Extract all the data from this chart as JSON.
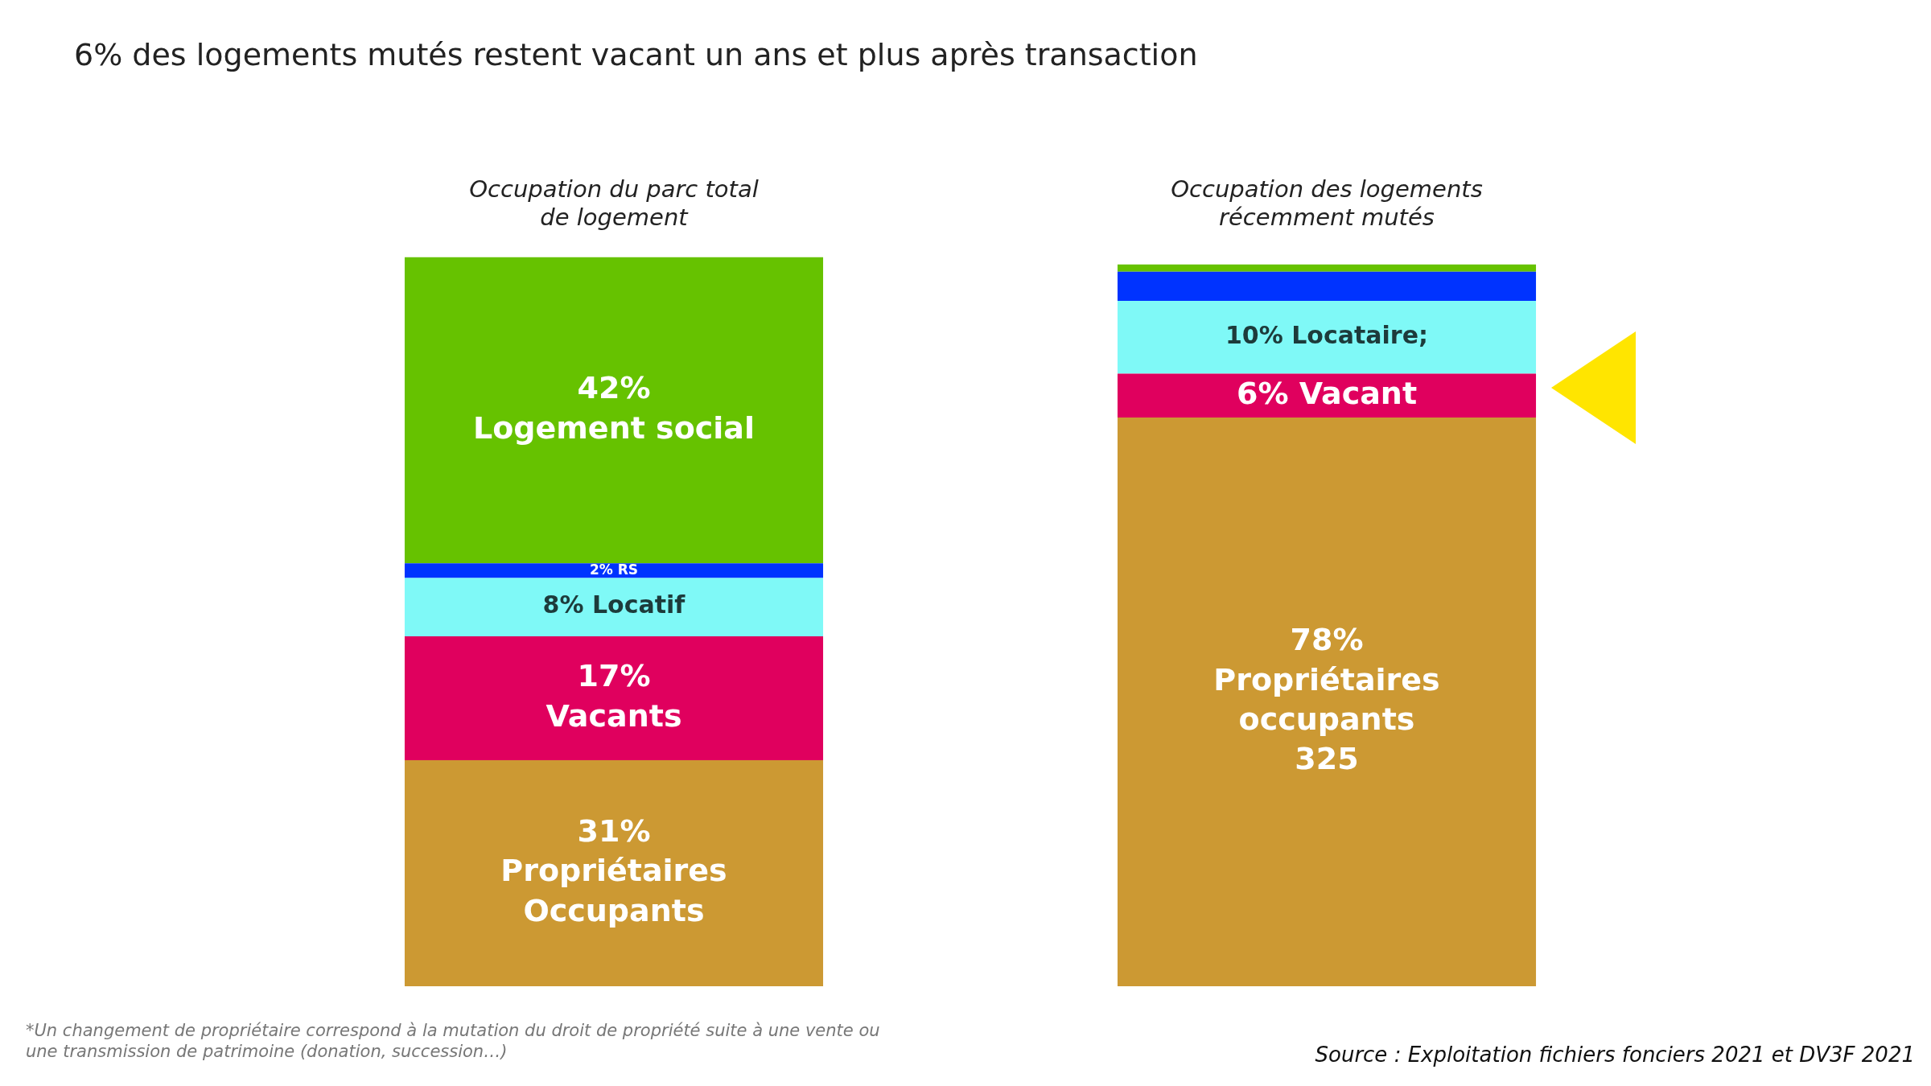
{
  "chart_data": {
    "type": "bar",
    "stacked": true,
    "legend": false,
    "grid": false,
    "tick_labels": "x",
    "title": "6% des logements mutés restent vacant un ans et plus après transaction",
    "categories": [
      "Occupation du parc total de logement",
      "Occupation des logements récemment mutés"
    ],
    "series": [
      {
        "color": "#cc9933",
        "values": [
          31,
          78
        ],
        "value_labels": [
          "31%\nPropriétaires\nOccupants",
          "78%\nPropriétaires\noccupants\n325"
        ]
      },
      {
        "color": "#e0005e",
        "values": [
          17,
          6
        ],
        "value_labels": [
          "17%\nVacants",
          "6% Vacant"
        ]
      },
      {
        "color": "#7ff9f7",
        "values": [
          8,
          10
        ],
        "value_labels": [
          "8% Locatif",
          "10% Locataire;"
        ]
      },
      {
        "color": "#0033ff",
        "values": [
          2,
          4
        ],
        "value_labels": [
          "2% RS",
          null
        ]
      },
      {
        "color": "#66c200",
        "values": [
          42,
          1
        ],
        "value_labels": [
          "42%\nLogement social",
          null
        ]
      }
    ],
    "annotations": [
      "*Un changement de propriétaire correspond à la mutation du droit de propriété suite à une vente ou une transmission de patrimoine (donation, succession…)",
      "Source : Exploitation fichiers fonciers 2021 et DV3F 2021"
    ]
  }
}
